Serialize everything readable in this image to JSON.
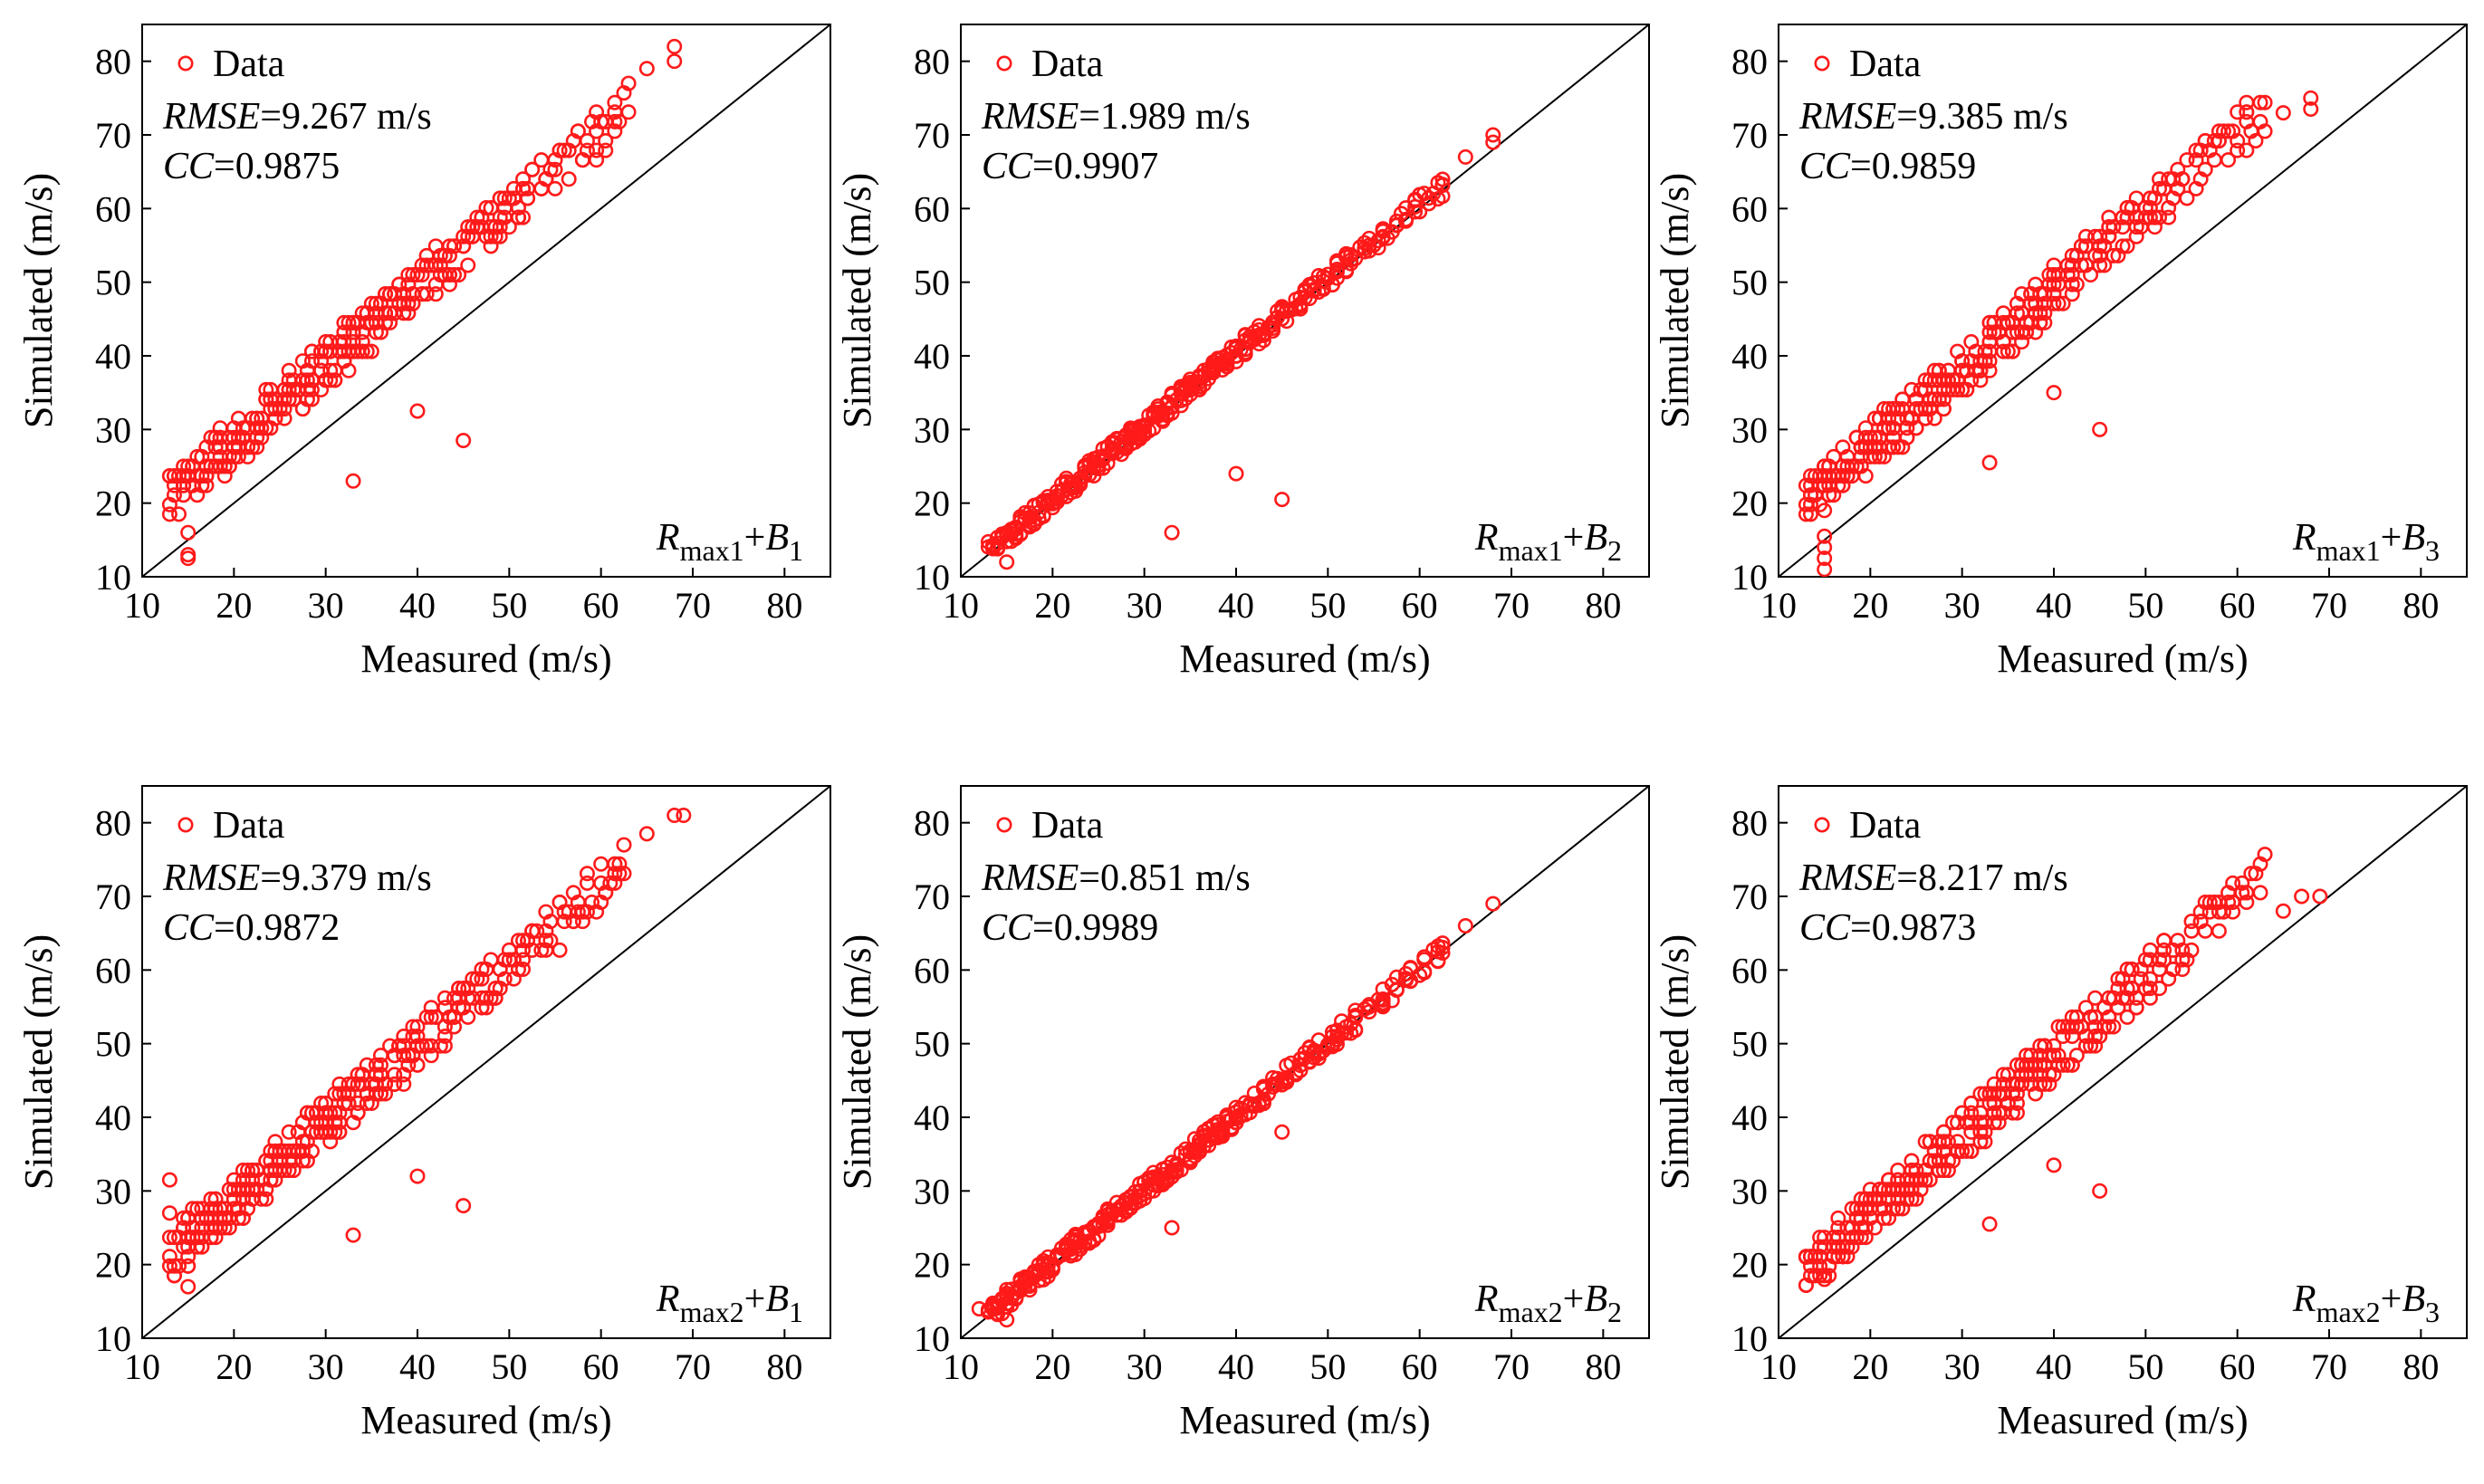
{
  "colors": {
    "point": "#ff1a1a",
    "axis": "#000000",
    "background": "#ffffff"
  },
  "chart_data": [
    {
      "type": "scatter",
      "panel": "top-left",
      "xlabel": "Measured (m/s)",
      "ylabel": "Simulated (m/s)",
      "xlim": [
        10,
        85
      ],
      "ylim": [
        10,
        85
      ],
      "xticks": [
        10,
        20,
        30,
        40,
        50,
        60,
        70,
        80
      ],
      "yticks": [
        10,
        20,
        30,
        40,
        50,
        60,
        70,
        80
      ],
      "legend": "Data",
      "stats": [
        {
          "label": "RMSE",
          "value": "=9.267 m/s"
        },
        {
          "label": "CC",
          "value": "=0.9875"
        }
      ],
      "model": {
        "base": "R",
        "sub1": "max1",
        "plus": "+",
        "var": "B",
        "sub2": "1"
      },
      "reference_line": "y=x",
      "bias": 7.5,
      "seed": 11,
      "outliers": [
        [
          33,
          23
        ],
        [
          40,
          32.5
        ],
        [
          45,
          28.5
        ],
        [
          15,
          13
        ],
        [
          15,
          12.5
        ],
        [
          15,
          16
        ],
        [
          68,
          82
        ],
        [
          68,
          80
        ],
        [
          65,
          79
        ]
      ]
    },
    {
      "type": "scatter",
      "panel": "top-middle",
      "xlabel": "Measured (m/s)",
      "ylabel": "Simulated (m/s)",
      "xlim": [
        10,
        85
      ],
      "ylim": [
        10,
        85
      ],
      "xticks": [
        10,
        20,
        30,
        40,
        50,
        60,
        70,
        80
      ],
      "yticks": [
        10,
        20,
        30,
        40,
        50,
        60,
        70,
        80
      ],
      "legend": "Data",
      "stats": [
        {
          "label": "RMSE",
          "value": "=1.989 m/s"
        },
        {
          "label": "CC",
          "value": "=0.9907"
        }
      ],
      "model": {
        "base": "R",
        "sub1": "max1",
        "plus": "+",
        "var": "B",
        "sub2": "2"
      },
      "reference_line": "y=x",
      "bias": 0.5,
      "seed": 23,
      "outliers": [
        [
          33,
          16
        ],
        [
          40,
          24
        ],
        [
          45,
          20.5
        ],
        [
          68,
          70
        ],
        [
          68,
          69
        ],
        [
          65,
          67
        ],
        [
          15,
          12
        ]
      ]
    },
    {
      "type": "scatter",
      "panel": "top-right",
      "xlabel": "Measured (m/s)",
      "ylabel": "Simulated (m/s)",
      "xlim": [
        10,
        85
      ],
      "ylim": [
        10,
        85
      ],
      "xticks": [
        10,
        20,
        30,
        40,
        50,
        60,
        70,
        80
      ],
      "yticks": [
        10,
        20,
        30,
        40,
        50,
        60,
        70,
        80
      ],
      "legend": "Data",
      "stats": [
        {
          "label": "RMSE",
          "value": "=9.385 m/s"
        },
        {
          "label": "CC",
          "value": "=0.9859"
        }
      ],
      "model": {
        "base": "R",
        "sub1": "max1",
        "plus": "+",
        "var": "B",
        "sub2": "3"
      },
      "reference_line": "y=x",
      "bias": 7.0,
      "seed": 37,
      "outliers": [
        [
          33,
          25.5
        ],
        [
          40,
          35
        ],
        [
          45,
          30
        ],
        [
          15,
          11
        ],
        [
          15,
          12.5
        ],
        [
          15,
          14
        ],
        [
          15,
          15.5
        ],
        [
          15,
          19
        ],
        [
          68,
          75
        ],
        [
          68,
          73.5
        ],
        [
          65,
          73
        ]
      ]
    },
    {
      "type": "scatter",
      "panel": "bottom-left",
      "xlabel": "Measured (m/s)",
      "ylabel": "Simulated (m/s)",
      "xlim": [
        10,
        85
      ],
      "ylim": [
        10,
        85
      ],
      "xticks": [
        10,
        20,
        30,
        40,
        50,
        60,
        70,
        80
      ],
      "yticks": [
        10,
        20,
        30,
        40,
        50,
        60,
        70,
        80
      ],
      "legend": "Data",
      "stats": [
        {
          "label": "RMSE",
          "value": "=9.379 m/s"
        },
        {
          "label": "CC",
          "value": "=0.9872"
        }
      ],
      "model": {
        "base": "R",
        "sub1": "max2",
        "plus": "+",
        "var": "B",
        "sub2": "1"
      },
      "reference_line": "y=x",
      "bias": 8.0,
      "seed": 41,
      "outliers": [
        [
          33,
          24
        ],
        [
          40,
          32
        ],
        [
          45,
          28
        ],
        [
          13,
          31.5
        ],
        [
          13,
          27
        ],
        [
          15,
          17
        ],
        [
          68,
          81
        ],
        [
          69,
          81
        ],
        [
          65,
          78.5
        ]
      ]
    },
    {
      "type": "scatter",
      "panel": "bottom-middle",
      "xlabel": "Measured (m/s)",
      "ylabel": "Simulated (m/s)",
      "xlim": [
        10,
        85
      ],
      "ylim": [
        10,
        85
      ],
      "xticks": [
        10,
        20,
        30,
        40,
        50,
        60,
        70,
        80
      ],
      "yticks": [
        10,
        20,
        30,
        40,
        50,
        60,
        70,
        80
      ],
      "legend": "Data",
      "stats": [
        {
          "label": "RMSE",
          "value": "=0.851 m/s"
        },
        {
          "label": "CC",
          "value": "=0.9989"
        }
      ],
      "model": {
        "base": "R",
        "sub1": "max2",
        "plus": "+",
        "var": "B",
        "sub2": "2"
      },
      "reference_line": "y=x",
      "bias": 0.2,
      "seed": 53,
      "outliers": [
        [
          33,
          25
        ],
        [
          45,
          38
        ],
        [
          68,
          69
        ],
        [
          65,
          66
        ],
        [
          12,
          14
        ],
        [
          15,
          12.5
        ]
      ]
    },
    {
      "type": "scatter",
      "panel": "bottom-right",
      "xlabel": "Measured (m/s)",
      "ylabel": "Simulated (m/s)",
      "xlim": [
        10,
        85
      ],
      "ylim": [
        10,
        85
      ],
      "xticks": [
        10,
        20,
        30,
        40,
        50,
        60,
        70,
        80
      ],
      "yticks": [
        10,
        20,
        30,
        40,
        50,
        60,
        70,
        80
      ],
      "legend": "Data",
      "stats": [
        {
          "label": "RMSE",
          "value": "=8.217 m/s"
        },
        {
          "label": "CC",
          "value": "=0.9873"
        }
      ],
      "model": {
        "base": "R",
        "sub1": "max2",
        "plus": "+",
        "var": "B",
        "sub2": "3"
      },
      "reference_line": "y=x",
      "bias": 6.5,
      "seed": 67,
      "outliers": [
        [
          33,
          25.5
        ],
        [
          40,
          33.5
        ],
        [
          45,
          30
        ],
        [
          13,
          21
        ],
        [
          15,
          18
        ],
        [
          67,
          70
        ],
        [
          69,
          70
        ],
        [
          65,
          68
        ]
      ]
    }
  ]
}
